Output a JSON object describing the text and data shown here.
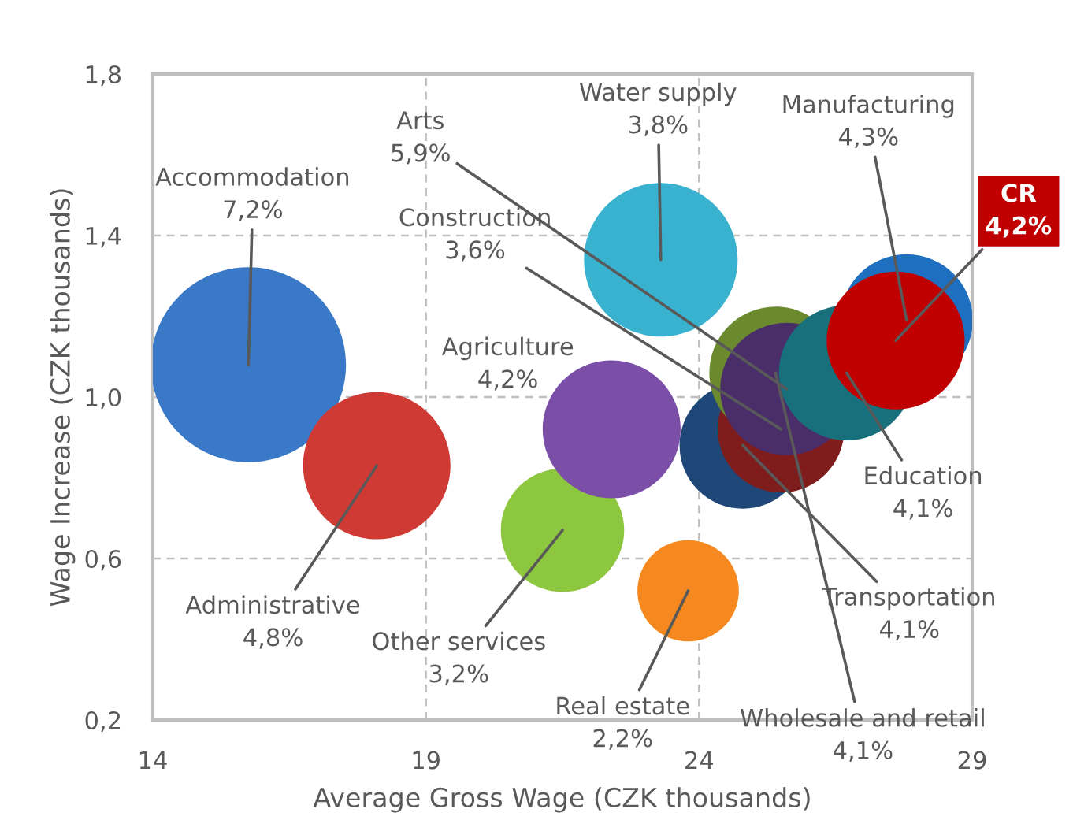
{
  "chart_data": {
    "type": "bubble",
    "xlabel": "Average Gross Wage (CZK thousands)",
    "ylabel": "Wage Increase (CZK thousands)",
    "xlim": [
      14,
      29
    ],
    "xticks": [
      14,
      19,
      24,
      29
    ],
    "ylim": [
      0.2,
      1.8
    ],
    "yticks": [
      {
        "value": 0.2,
        "label": "0,2"
      },
      {
        "value": 0.6,
        "label": "0,6"
      },
      {
        "value": 1.0,
        "label": "1,0"
      },
      {
        "value": 1.4,
        "label": "1,4"
      },
      {
        "value": 1.8,
        "label": "1,8"
      }
    ],
    "grid": true,
    "series": [
      {
        "x": [
          15.75,
          18.1,
          21.5,
          22.4,
          23.3,
          23.8,
          24.8,
          25.5,
          25.4,
          25.6,
          26.7,
          27.8,
          27.6
        ],
        "values": [
          1.08,
          0.83,
          0.67,
          0.92,
          1.34,
          0.52,
          0.88,
          0.92,
          1.06,
          1.02,
          1.06,
          1.19,
          1.14
        ],
        "sizes": [
          1.0,
          0.57,
          0.4,
          0.5,
          0.62,
          0.27,
          0.42,
          0.42,
          0.46,
          0.46,
          0.48,
          0.46,
          0.5
        ],
        "colors": [
          "#3a78c8",
          "#d03a35",
          "#8dc63f",
          "#7b4fa8",
          "#38b2cf",
          "#f5891f",
          "#1f4778",
          "#7f1d1d",
          "#6b8a2e",
          "#4a2e6a",
          "#17707c",
          "#1f6fc0",
          "#c00000"
        ]
      }
    ],
    "annotations": [
      {
        "text": "Accommodation\n7,2%",
        "x": 15.75,
        "y": 1.08
      },
      {
        "text": "Administrative\n4,8%",
        "x": 18.1,
        "y": 0.83
      },
      {
        "text": "Other services\n3,2%",
        "x": 21.5,
        "y": 0.67
      },
      {
        "text": "Agriculture\n4,2%",
        "x": 22.4,
        "y": 0.92
      },
      {
        "text": "Water supply\n3,8%",
        "x": 23.3,
        "y": 1.34
      },
      {
        "text": "Real estate\n2,2%",
        "x": 23.8,
        "y": 0.52
      },
      {
        "text": "Transportation\n4,1%",
        "x": 24.8,
        "y": 0.88
      },
      {
        "text": "Construction\n3,6%",
        "x": 25.5,
        "y": 0.92
      },
      {
        "text": "Wholesale and retail\n4,1%",
        "x": 25.4,
        "y": 1.06
      },
      {
        "text": "Arts\n5,9%",
        "x": 25.6,
        "y": 1.02
      },
      {
        "text": "Education\n4,1%",
        "x": 26.7,
        "y": 1.06
      },
      {
        "text": "Manufacturing\n4,3%",
        "x": 27.8,
        "y": 1.19
      },
      {
        "text": "CR\n4,2%",
        "x": 27.6,
        "y": 1.14
      }
    ]
  }
}
